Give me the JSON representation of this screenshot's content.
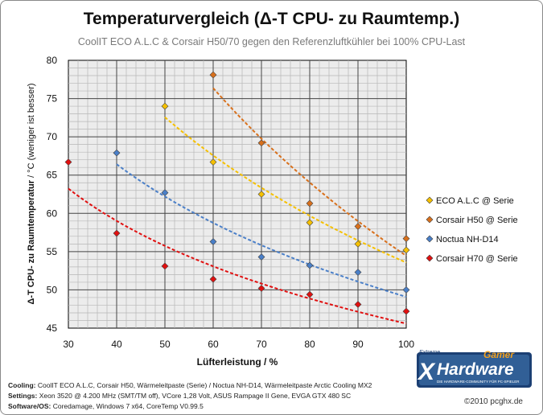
{
  "page": {
    "title": "Temperaturvergleich (Δ-T CPU- zu Raumtemp.)",
    "subtitle": "CoolIT ECO A.L.C & Corsair H50/70  gegen den Referenzluftkühler bei 100% CPU-Last",
    "footer": [
      {
        "label": "Cooling:",
        "text": " CoolIT ECO A.L.C, Corsair H50, Wärmeleitpaste (Serie) / Noctua NH-D14, Wärmeleitpaste Arctic Cooling MX2"
      },
      {
        "label": "Settings:",
        "text": " Xeon 3520 @ 4.200 MHz (SMT/TM off), VCore 1,28 Volt, ASUS Rampage II Gene, EVGA GTX 480 SC"
      },
      {
        "label": "Software/OS:",
        "text": " Coredamage, Windows 7 x64, CoreTemp V0.99.5"
      }
    ],
    "copyright": "©2010 pcghx.de",
    "logo": {
      "line1": "Extreme",
      "line2": "Gamer",
      "main": "Hardware",
      "tagline": "DIE HARDWARE-COMMUNITY FÜR PC-SPIELER",
      "colors": {
        "dark": "#1b3f73",
        "light": "#5d9ad6",
        "accent": "#f0a020"
      }
    }
  },
  "chart_data": {
    "type": "scatter",
    "xlabel": "Lüfterleistung  / %",
    "ylabel_bold": "Δ-T CPU- zu Raumtemperatur",
    "ylabel_normal": "  / °C (weniger ist besser)",
    "xlim": [
      30,
      100
    ],
    "ylim": [
      45,
      80
    ],
    "xticks": [
      30,
      40,
      50,
      60,
      70,
      80,
      90,
      100
    ],
    "yticks": [
      45,
      50,
      55,
      60,
      65,
      70,
      75,
      80
    ],
    "grid": true,
    "legend_position": "right",
    "trendlines": true,
    "series": [
      {
        "name": "ECO A.L.C @ Serie",
        "color": "#f5c000",
        "x": [
          50,
          60,
          70,
          80,
          90,
          100
        ],
        "y": [
          74.0,
          66.7,
          62.5,
          58.8,
          56.0,
          55.2
        ],
        "trend_x": [
          50,
          100
        ]
      },
      {
        "name": "Corsair H50 @ Serie",
        "color": "#d8701c",
        "x": [
          60,
          70,
          80,
          90,
          100
        ],
        "y": [
          78.1,
          69.2,
          61.3,
          58.3,
          56.7
        ],
        "trend_x": [
          60,
          100
        ]
      },
      {
        "name": "Noctua NH-D14",
        "color": "#4a7fc8",
        "x": [
          40,
          50,
          60,
          70,
          80,
          90,
          100
        ],
        "y": [
          67.9,
          62.7,
          56.3,
          54.3,
          53.2,
          52.3,
          50.0
        ],
        "trend_x": [
          40,
          100
        ]
      },
      {
        "name": "Corsair H70 @ Serie",
        "color": "#e01010",
        "x": [
          30,
          40,
          50,
          60,
          70,
          80,
          90,
          100
        ],
        "y": [
          66.7,
          57.4,
          53.1,
          51.4,
          50.2,
          49.4,
          48.1,
          47.2
        ],
        "trend_x": [
          30,
          100
        ]
      }
    ]
  }
}
